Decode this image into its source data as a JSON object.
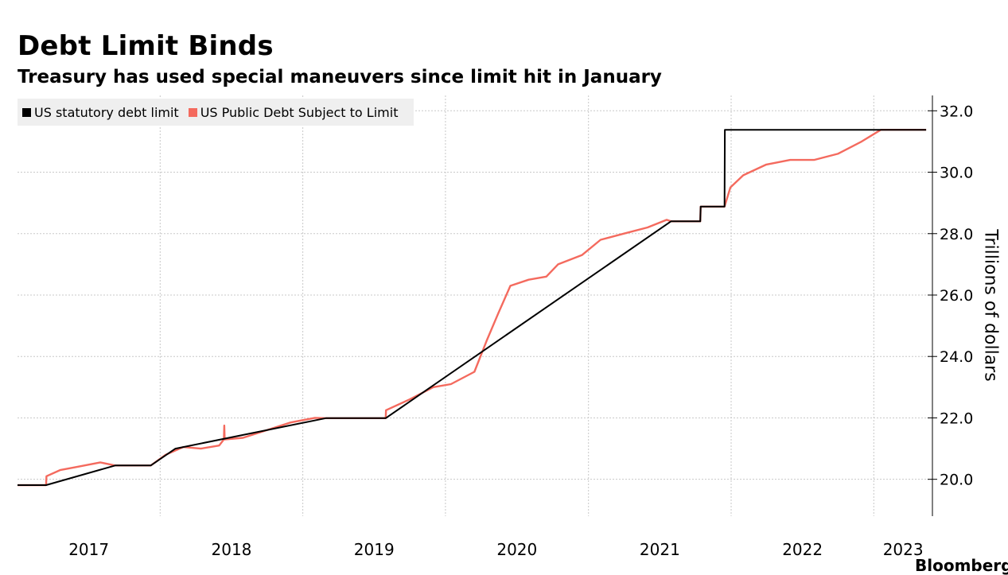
{
  "title": "Debt Limit Binds",
  "subtitle": "Treasury has used special maneuvers since limit hit in January",
  "brand": "Bloomberg",
  "colors": {
    "limit": "#000000",
    "debt": "#f46a5e",
    "grid": "#c8c8c8"
  },
  "chart_data": {
    "type": "line",
    "title": "Debt Limit Binds",
    "subtitle": "Treasury has used special maneuvers since limit hit in January",
    "xlabel": "",
    "ylabel": "Trillions of dollars",
    "xlim": [
      "2017-01-01",
      "2023-05-31"
    ],
    "ylim": [
      18.8,
      32.5
    ],
    "y_ticks": [
      "20.0",
      "22.0",
      "24.0",
      "26.0",
      "28.0",
      "30.0",
      "32.0"
    ],
    "x_ticks": [
      "2017",
      "2018",
      "2019",
      "2020",
      "2021",
      "2022",
      "2023"
    ],
    "grid": true,
    "legend_position": "top-left",
    "series": [
      {
        "name": "US statutory debt limit",
        "color": "#000000",
        "points": [
          [
            "2017-01-01",
            19.81
          ],
          [
            "2017-03-15",
            19.81
          ],
          [
            "2017-09-08",
            20.45
          ],
          [
            "2017-12-08",
            20.45
          ],
          [
            "2018-02-09",
            21.0
          ],
          [
            "2019-03-01",
            21.99
          ],
          [
            "2019-08-01",
            21.99
          ],
          [
            "2021-07-31",
            28.4
          ],
          [
            "2021-10-14",
            28.4
          ],
          [
            "2021-10-15",
            28.88
          ],
          [
            "2021-12-15",
            28.88
          ],
          [
            "2021-12-16",
            31.38
          ],
          [
            "2023-05-15",
            31.38
          ]
        ]
      },
      {
        "name": "US Public Debt Subject to Limit",
        "color": "#f46a5e",
        "points": [
          [
            "2017-01-01",
            19.81
          ],
          [
            "2017-03-15",
            19.81
          ],
          [
            "2017-03-16",
            20.1
          ],
          [
            "2017-04-20",
            20.3
          ],
          [
            "2017-06-01",
            20.4
          ],
          [
            "2017-08-01",
            20.55
          ],
          [
            "2017-09-08",
            20.45
          ],
          [
            "2017-12-08",
            20.45
          ],
          [
            "2018-01-15",
            20.8
          ],
          [
            "2018-03-01",
            21.05
          ],
          [
            "2018-04-15",
            21.0
          ],
          [
            "2018-06-01",
            21.1
          ],
          [
            "2018-06-13",
            21.3
          ],
          [
            "2018-06-14",
            21.75
          ],
          [
            "2018-06-15",
            21.3
          ],
          [
            "2018-08-01",
            21.35
          ],
          [
            "2018-10-01",
            21.6
          ],
          [
            "2018-12-01",
            21.85
          ],
          [
            "2019-02-01",
            22.0
          ],
          [
            "2019-03-01",
            21.99
          ],
          [
            "2019-08-01",
            21.99
          ],
          [
            "2019-08-02",
            22.25
          ],
          [
            "2019-10-01",
            22.6
          ],
          [
            "2019-12-01",
            23.0
          ],
          [
            "2020-01-15",
            23.1
          ],
          [
            "2020-03-15",
            23.5
          ],
          [
            "2020-04-15",
            24.5
          ],
          [
            "2020-05-15",
            25.4
          ],
          [
            "2020-06-15",
            26.3
          ],
          [
            "2020-08-01",
            26.5
          ],
          [
            "2020-09-15",
            26.6
          ],
          [
            "2020-10-15",
            27.0
          ],
          [
            "2020-12-15",
            27.3
          ],
          [
            "2021-02-01",
            27.8
          ],
          [
            "2021-04-01",
            28.0
          ],
          [
            "2021-06-01",
            28.2
          ],
          [
            "2021-07-20",
            28.45
          ],
          [
            "2021-07-31",
            28.4
          ],
          [
            "2021-10-14",
            28.4
          ],
          [
            "2021-10-15",
            28.88
          ],
          [
            "2021-12-15",
            28.88
          ],
          [
            "2021-12-30",
            29.5
          ],
          [
            "2022-02-01",
            29.9
          ],
          [
            "2022-04-01",
            30.25
          ],
          [
            "2022-06-01",
            30.4
          ],
          [
            "2022-08-01",
            30.4
          ],
          [
            "2022-10-01",
            30.6
          ],
          [
            "2022-12-01",
            31.0
          ],
          [
            "2023-01-19",
            31.38
          ],
          [
            "2023-05-15",
            31.38
          ]
        ]
      }
    ]
  }
}
